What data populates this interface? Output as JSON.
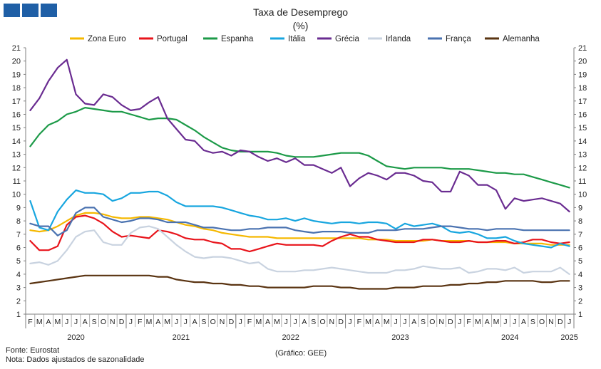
{
  "header": {
    "logo_icon": "gee-logo-icon"
  },
  "chart_data": {
    "type": "line",
    "title": "Taxa de Desemprego",
    "subtitle": "(%)",
    "xlabel": "",
    "ylabel": "",
    "ylim": [
      1,
      21
    ],
    "yticks": [
      1,
      2,
      3,
      4,
      5,
      6,
      7,
      8,
      9,
      10,
      11,
      12,
      13,
      14,
      15,
      16,
      17,
      18,
      19,
      20,
      21
    ],
    "grid": false,
    "legend_position": "top",
    "dual_y_axis": true,
    "month_labels": [
      "F",
      "M",
      "A",
      "M",
      "J",
      "J",
      "A",
      "S",
      "O",
      "N",
      "D",
      "J",
      "F",
      "M",
      "A",
      "M",
      "J",
      "J",
      "A",
      "S",
      "O",
      "N",
      "D",
      "J",
      "F",
      "M",
      "A",
      "M",
      "J",
      "J",
      "A",
      "S",
      "O",
      "N",
      "D",
      "J",
      "F",
      "M",
      "A",
      "M",
      "J",
      "J",
      "A",
      "S",
      "O",
      "N",
      "D",
      "J",
      "F",
      "M",
      "A",
      "M",
      "J",
      "J",
      "A",
      "S",
      "O",
      "N",
      "D",
      "J"
    ],
    "years": [
      {
        "label": "2020",
        "start": 0,
        "end": 10
      },
      {
        "label": "2021",
        "start": 11,
        "end": 22
      },
      {
        "label": "2022",
        "start": 23,
        "end": 34
      },
      {
        "label": "2023",
        "start": 35,
        "end": 46
      },
      {
        "label": "2024",
        "start": 47,
        "end": 58
      },
      {
        "label": "2025",
        "start": 59,
        "end": 59
      }
    ],
    "series": [
      {
        "name": "Zona Euro",
        "color": "#f5b800",
        "values": [
          7.3,
          7.2,
          7.3,
          7.6,
          8.0,
          8.4,
          8.6,
          8.6,
          8.5,
          8.3,
          8.2,
          8.2,
          8.3,
          8.3,
          8.2,
          8.1,
          7.9,
          7.7,
          7.6,
          7.4,
          7.3,
          7.1,
          7.0,
          6.9,
          6.8,
          6.8,
          6.8,
          6.7,
          6.7,
          6.7,
          6.7,
          6.7,
          6.7,
          6.7,
          6.7,
          6.7,
          6.7,
          6.6,
          6.6,
          6.6,
          6.5,
          6.5,
          6.5,
          6.5,
          6.6,
          6.5,
          6.5,
          6.5,
          6.5,
          6.4,
          6.4,
          6.4,
          6.4,
          6.3,
          6.3,
          6.3,
          6.3,
          6.2,
          6.2,
          6.2
        ]
      },
      {
        "name": "Portugal",
        "color": "#e8141b",
        "values": [
          6.5,
          5.8,
          5.8,
          6.1,
          7.7,
          8.3,
          8.4,
          8.2,
          7.8,
          7.2,
          6.8,
          6.9,
          6.8,
          6.7,
          7.3,
          7.2,
          7.0,
          6.7,
          6.6,
          6.6,
          6.4,
          6.3,
          5.9,
          5.9,
          5.7,
          5.9,
          6.1,
          6.3,
          6.2,
          6.2,
          6.2,
          6.2,
          6.1,
          6.5,
          6.8,
          7.0,
          6.8,
          6.8,
          6.6,
          6.5,
          6.4,
          6.4,
          6.4,
          6.6,
          6.6,
          6.5,
          6.4,
          6.4,
          6.5,
          6.4,
          6.4,
          6.5,
          6.5,
          6.3,
          6.4,
          6.6,
          6.6,
          6.4,
          6.3,
          6.4
        ]
      },
      {
        "name": "Espanha",
        "color": "#1c9a48",
        "values": [
          13.6,
          14.5,
          15.2,
          15.5,
          16.0,
          16.2,
          16.5,
          16.4,
          16.3,
          16.2,
          16.2,
          16.0,
          15.8,
          15.6,
          15.7,
          15.7,
          15.6,
          15.2,
          14.8,
          14.3,
          13.9,
          13.5,
          13.3,
          13.2,
          13.2,
          13.2,
          13.2,
          13.1,
          12.9,
          12.8,
          12.8,
          12.8,
          12.9,
          13.0,
          13.1,
          13.1,
          13.1,
          12.9,
          12.5,
          12.1,
          12.0,
          11.9,
          12.0,
          12.0,
          12.0,
          12.0,
          11.9,
          11.9,
          11.9,
          11.8,
          11.7,
          11.6,
          11.6,
          11.5,
          11.5,
          11.3,
          11.1,
          10.9,
          10.7,
          10.5
        ]
      },
      {
        "name": "Itália",
        "color": "#18a6df",
        "values": [
          9.5,
          7.5,
          7.3,
          8.7,
          9.6,
          10.3,
          10.1,
          10.1,
          10.0,
          9.5,
          9.7,
          10.1,
          10.1,
          10.2,
          10.2,
          9.9,
          9.4,
          9.1,
          9.1,
          9.1,
          9.1,
          9.0,
          8.8,
          8.6,
          8.4,
          8.3,
          8.1,
          8.1,
          8.2,
          8.0,
          8.2,
          8.0,
          7.9,
          7.8,
          7.9,
          7.9,
          7.8,
          7.9,
          7.9,
          7.8,
          7.4,
          7.8,
          7.6,
          7.7,
          7.8,
          7.6,
          7.2,
          7.1,
          7.2,
          7.0,
          6.7,
          6.7,
          6.8,
          6.5,
          6.3,
          6.2,
          6.1,
          6.0,
          6.3,
          6.1
        ]
      },
      {
        "name": "Grécia",
        "color": "#6a2c91",
        "values": [
          16.3,
          17.2,
          18.5,
          19.5,
          20.1,
          17.5,
          16.8,
          16.7,
          17.5,
          17.3,
          16.7,
          16.3,
          16.4,
          16.9,
          17.3,
          15.7,
          14.9,
          14.1,
          14.0,
          13.3,
          13.1,
          13.2,
          12.9,
          13.3,
          13.2,
          12.8,
          12.5,
          12.7,
          12.4,
          12.7,
          12.2,
          12.2,
          11.9,
          11.6,
          12.0,
          10.6,
          11.2,
          11.6,
          11.4,
          11.1,
          11.6,
          11.6,
          11.4,
          11.0,
          10.9,
          10.2,
          10.2,
          11.7,
          11.4,
          10.7,
          10.7,
          10.3,
          8.9,
          9.7,
          9.5,
          9.6,
          9.7,
          9.5,
          9.3,
          8.7
        ]
      },
      {
        "name": "Irlanda",
        "color": "#c9d3e0",
        "values": [
          4.8,
          4.9,
          4.7,
          5.0,
          5.8,
          6.8,
          7.2,
          7.3,
          6.4,
          6.2,
          6.2,
          7.1,
          7.5,
          7.6,
          7.4,
          6.8,
          6.2,
          5.7,
          5.3,
          5.2,
          5.3,
          5.3,
          5.2,
          5.0,
          4.8,
          4.9,
          4.4,
          4.2,
          4.2,
          4.2,
          4.3,
          4.3,
          4.4,
          4.5,
          4.4,
          4.3,
          4.2,
          4.1,
          4.1,
          4.1,
          4.3,
          4.3,
          4.4,
          4.6,
          4.5,
          4.4,
          4.4,
          4.5,
          4.1,
          4.2,
          4.4,
          4.4,
          4.3,
          4.5,
          4.1,
          4.2,
          4.2,
          4.2,
          4.5,
          4.0
        ]
      },
      {
        "name": "França",
        "color": "#4a72b0",
        "values": [
          7.8,
          7.6,
          7.6,
          6.9,
          7.3,
          8.6,
          9.0,
          9.0,
          8.3,
          8.1,
          7.9,
          8.0,
          8.2,
          8.2,
          8.1,
          7.9,
          7.9,
          7.9,
          7.7,
          7.5,
          7.5,
          7.4,
          7.3,
          7.3,
          7.4,
          7.4,
          7.5,
          7.5,
          7.5,
          7.3,
          7.2,
          7.1,
          7.2,
          7.2,
          7.2,
          7.1,
          7.1,
          7.1,
          7.3,
          7.3,
          7.3,
          7.4,
          7.4,
          7.4,
          7.5,
          7.6,
          7.6,
          7.5,
          7.4,
          7.4,
          7.3,
          7.4,
          7.4,
          7.4,
          7.3,
          7.3,
          7.3,
          7.3,
          7.3,
          7.3
        ]
      },
      {
        "name": "Alemanha",
        "color": "#5a3412",
        "values": [
          3.3,
          3.4,
          3.5,
          3.6,
          3.7,
          3.8,
          3.9,
          3.9,
          3.9,
          3.9,
          3.9,
          3.9,
          3.9,
          3.9,
          3.8,
          3.8,
          3.6,
          3.5,
          3.4,
          3.4,
          3.3,
          3.3,
          3.2,
          3.2,
          3.1,
          3.1,
          3.0,
          3.0,
          3.0,
          3.0,
          3.0,
          3.1,
          3.1,
          3.1,
          3.0,
          3.0,
          2.9,
          2.9,
          2.9,
          2.9,
          3.0,
          3.0,
          3.0,
          3.1,
          3.1,
          3.1,
          3.2,
          3.2,
          3.3,
          3.3,
          3.4,
          3.4,
          3.5,
          3.5,
          3.5,
          3.5,
          3.4,
          3.4,
          3.5,
          3.5
        ]
      }
    ]
  },
  "footer": {
    "source": "Fonte: Eurostat",
    "note": "Nota: Dados ajustados de sazonalidade",
    "credit": "(Gráfico: GEE)"
  }
}
